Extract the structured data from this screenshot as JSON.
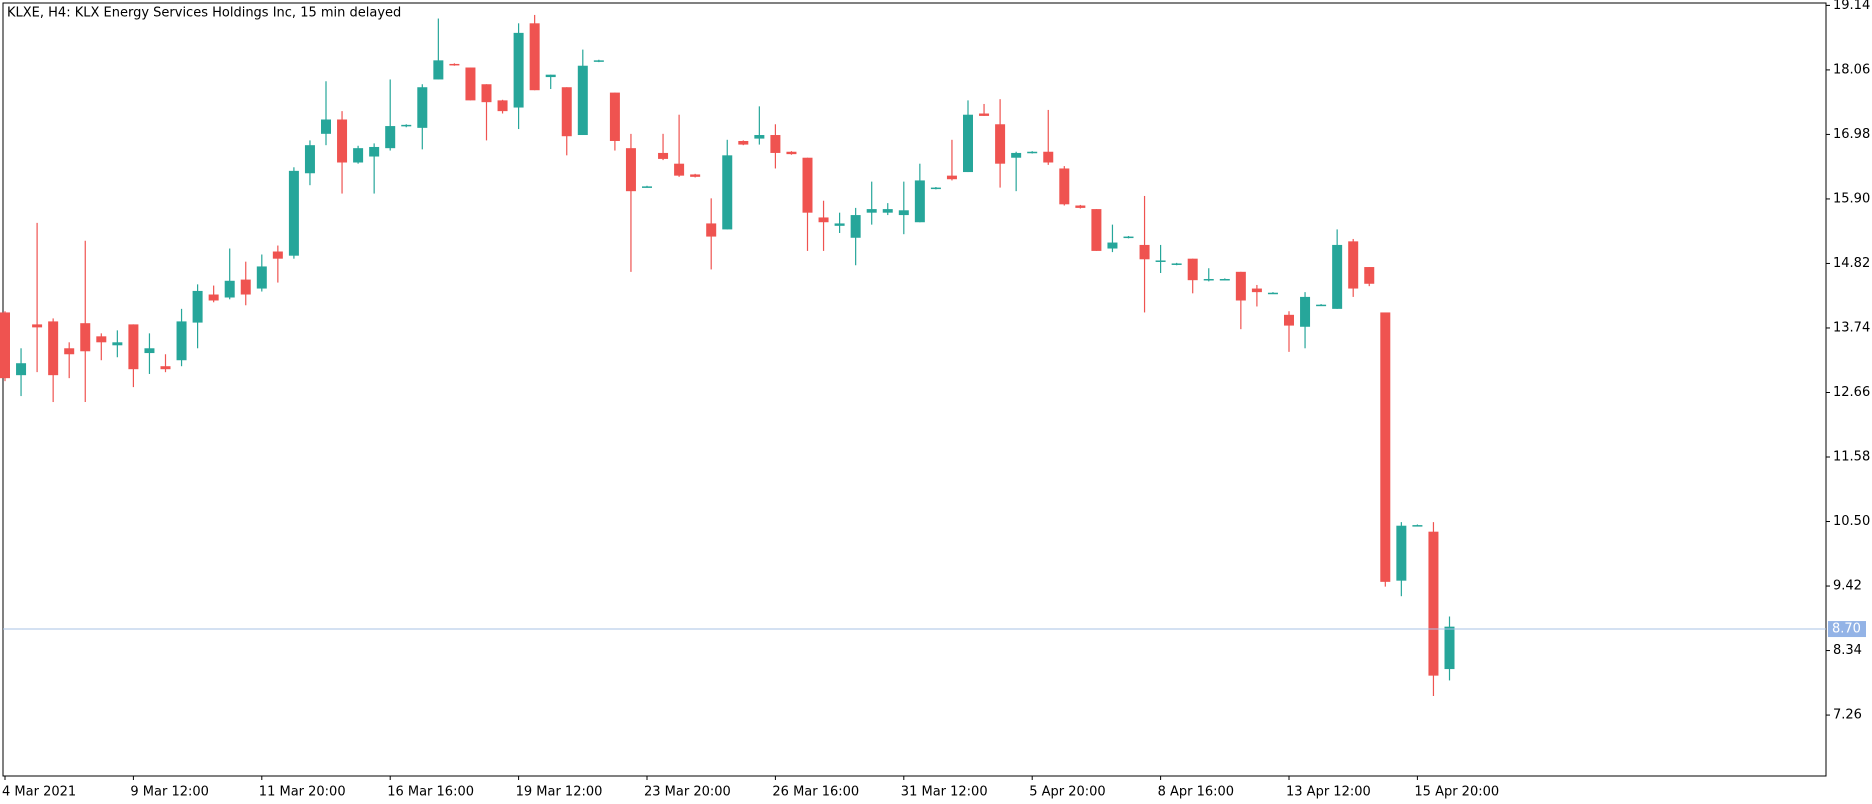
{
  "chart_data": {
    "type": "candlestick",
    "title": "KLXE, H4:  KLX Energy Services Holdings Inc, 15 min delayed",
    "categories": [
      "4 Mar 2021",
      null,
      null,
      null,
      null,
      null,
      null,
      null,
      "9 Mar 12:00",
      null,
      null,
      null,
      null,
      null,
      null,
      null,
      "11 Mar 20:00",
      null,
      null,
      null,
      null,
      null,
      null,
      null,
      "16 Mar 16:00",
      null,
      null,
      null,
      null,
      null,
      null,
      null,
      "19 Mar 12:00",
      null,
      null,
      null,
      null,
      null,
      null,
      null,
      "23 Mar 20:00",
      null,
      null,
      null,
      null,
      null,
      null,
      null,
      "26 Mar 16:00",
      null,
      null,
      null,
      null,
      null,
      null,
      null,
      "31 Mar 12:00",
      null,
      null,
      null,
      null,
      null,
      null,
      null,
      "5 Apr 20:00",
      null,
      null,
      null,
      null,
      null,
      null,
      null,
      "8 Apr 16:00",
      null,
      null,
      null,
      null,
      null,
      null,
      null,
      "13 Apr 12:00",
      null,
      null,
      null,
      null,
      null,
      null,
      null,
      "15 Apr 20:00",
      null,
      null
    ],
    "open": [
      14.0,
      12.95,
      13.8,
      13.85,
      13.4,
      13.82,
      13.6,
      13.45,
      13.8,
      13.32,
      13.1,
      13.2,
      13.83,
      14.3,
      14.25,
      14.55,
      14.4,
      15.02,
      14.95,
      16.33,
      16.99,
      17.23,
      16.51,
      16.61,
      16.75,
      17.12,
      17.09,
      17.9,
      18.16,
      18.1,
      17.82,
      17.55,
      17.43,
      18.84,
      17.94,
      17.77,
      16.97,
      18.2,
      17.68,
      16.75,
      16.1,
      16.67,
      16.49,
      16.31,
      15.49,
      15.39,
      16.87,
      16.91,
      16.97,
      16.69,
      16.59,
      15.59,
      15.45,
      15.25,
      15.67,
      15.67,
      15.63,
      15.51,
      16.07,
      16.29,
      16.35,
      17.33,
      17.15,
      16.59,
      16.67,
      16.69,
      16.41,
      15.79,
      15.73,
      15.07,
      15.25,
      15.13,
      14.85,
      14.8,
      14.9,
      14.55,
      14.55,
      14.68,
      14.4,
      14.32,
      13.96,
      13.76,
      14.12,
      14.06,
      15.19,
      14.76,
      14.0,
      9.51,
      10.43,
      10.33,
      8.03
    ],
    "high": [
      14.02,
      13.4,
      15.5,
      13.9,
      13.5,
      15.2,
      13.65,
      13.7,
      13.8,
      13.65,
      13.3,
      14.06,
      14.47,
      14.45,
      15.07,
      14.85,
      14.97,
      15.12,
      16.43,
      16.88,
      17.87,
      17.37,
      16.79,
      16.83,
      17.9,
      17.15,
      17.82,
      18.92,
      18.17,
      18.1,
      17.82,
      17.56,
      18.84,
      18.98,
      17.98,
      17.77,
      18.4,
      18.23,
      17.68,
      16.99,
      16.12,
      16.99,
      17.31,
      16.32,
      15.91,
      16.89,
      16.88,
      17.45,
      17.15,
      16.7,
      16.59,
      15.87,
      15.67,
      15.75,
      16.19,
      15.83,
      16.19,
      16.49,
      16.1,
      16.89,
      17.55,
      17.49,
      17.57,
      16.69,
      16.7,
      17.39,
      16.45,
      15.8,
      15.73,
      15.47,
      15.28,
      15.95,
      15.13,
      14.83,
      14.9,
      14.74,
      14.57,
      14.68,
      14.46,
      14.34,
      14.02,
      14.34,
      14.14,
      15.39,
      15.23,
      14.76,
      14.0,
      10.49,
      10.45,
      10.49,
      8.91
    ],
    "low": [
      12.85,
      12.6,
      13.0,
      12.5,
      12.9,
      12.5,
      13.2,
      13.25,
      12.75,
      12.97,
      13.0,
      13.1,
      13.4,
      14.17,
      14.22,
      14.12,
      14.35,
      14.5,
      14.9,
      16.13,
      16.8,
      15.99,
      16.49,
      15.99,
      16.71,
      17.1,
      16.73,
      17.9,
      18.13,
      17.55,
      16.88,
      17.33,
      17.07,
      17.72,
      17.74,
      16.63,
      16.97,
      18.19,
      16.71,
      14.68,
      16.09,
      16.55,
      16.27,
      16.26,
      14.72,
      15.39,
      16.8,
      16.81,
      16.41,
      16.64,
      15.03,
      15.03,
      15.33,
      14.79,
      15.47,
      15.63,
      15.31,
      15.51,
      16.06,
      16.21,
      16.35,
      17.29,
      16.09,
      16.03,
      16.66,
      16.47,
      15.79,
      15.74,
      15.03,
      15.01,
      15.24,
      14.0,
      14.66,
      14.79,
      14.32,
      14.52,
      14.54,
      13.72,
      14.1,
      14.31,
      13.34,
      13.4,
      14.11,
      14.06,
      14.26,
      14.44,
      9.41,
      9.25,
      10.42,
      7.58,
      7.84
    ],
    "close": [
      12.9,
      13.15,
      13.75,
      12.95,
      13.3,
      13.35,
      13.5,
      13.5,
      13.05,
      13.4,
      13.05,
      13.85,
      14.36,
      14.2,
      14.53,
      14.3,
      14.77,
      14.9,
      16.37,
      16.8,
      17.23,
      16.51,
      16.75,
      16.77,
      17.12,
      17.14,
      17.77,
      18.22,
      18.14,
      17.55,
      17.52,
      17.37,
      18.68,
      17.72,
      17.98,
      16.95,
      18.13,
      18.22,
      16.87,
      16.03,
      16.11,
      16.57,
      16.29,
      16.27,
      15.27,
      16.63,
      16.81,
      16.97,
      16.67,
      16.65,
      15.67,
      15.51,
      15.49,
      15.63,
      15.73,
      15.73,
      15.71,
      16.21,
      16.09,
      16.23,
      17.31,
      17.29,
      16.49,
      16.67,
      16.69,
      16.51,
      15.81,
      15.75,
      15.03,
      15.17,
      15.27,
      14.89,
      14.87,
      14.82,
      14.54,
      14.56,
      14.56,
      14.2,
      14.34,
      14.33,
      13.78,
      14.26,
      14.13,
      15.13,
      14.4,
      14.48,
      9.49,
      10.43,
      10.44,
      7.92,
      8.74
    ],
    "up_color": "#26a69a",
    "down_color": "#ef5350",
    "ylim": [
      6.24,
      19.18
    ],
    "yticks": [
      19.14,
      18.06,
      16.98,
      {
        "value": 15.9,
        "label": "15.90"
      },
      14.82,
      13.74,
      12.66,
      11.58,
      {
        "value": 10.5,
        "label": "10.50"
      },
      9.42,
      8.34,
      7.26
    ],
    "last_price": {
      "value": 8.7,
      "label": "8.70"
    },
    "grid": false
  }
}
